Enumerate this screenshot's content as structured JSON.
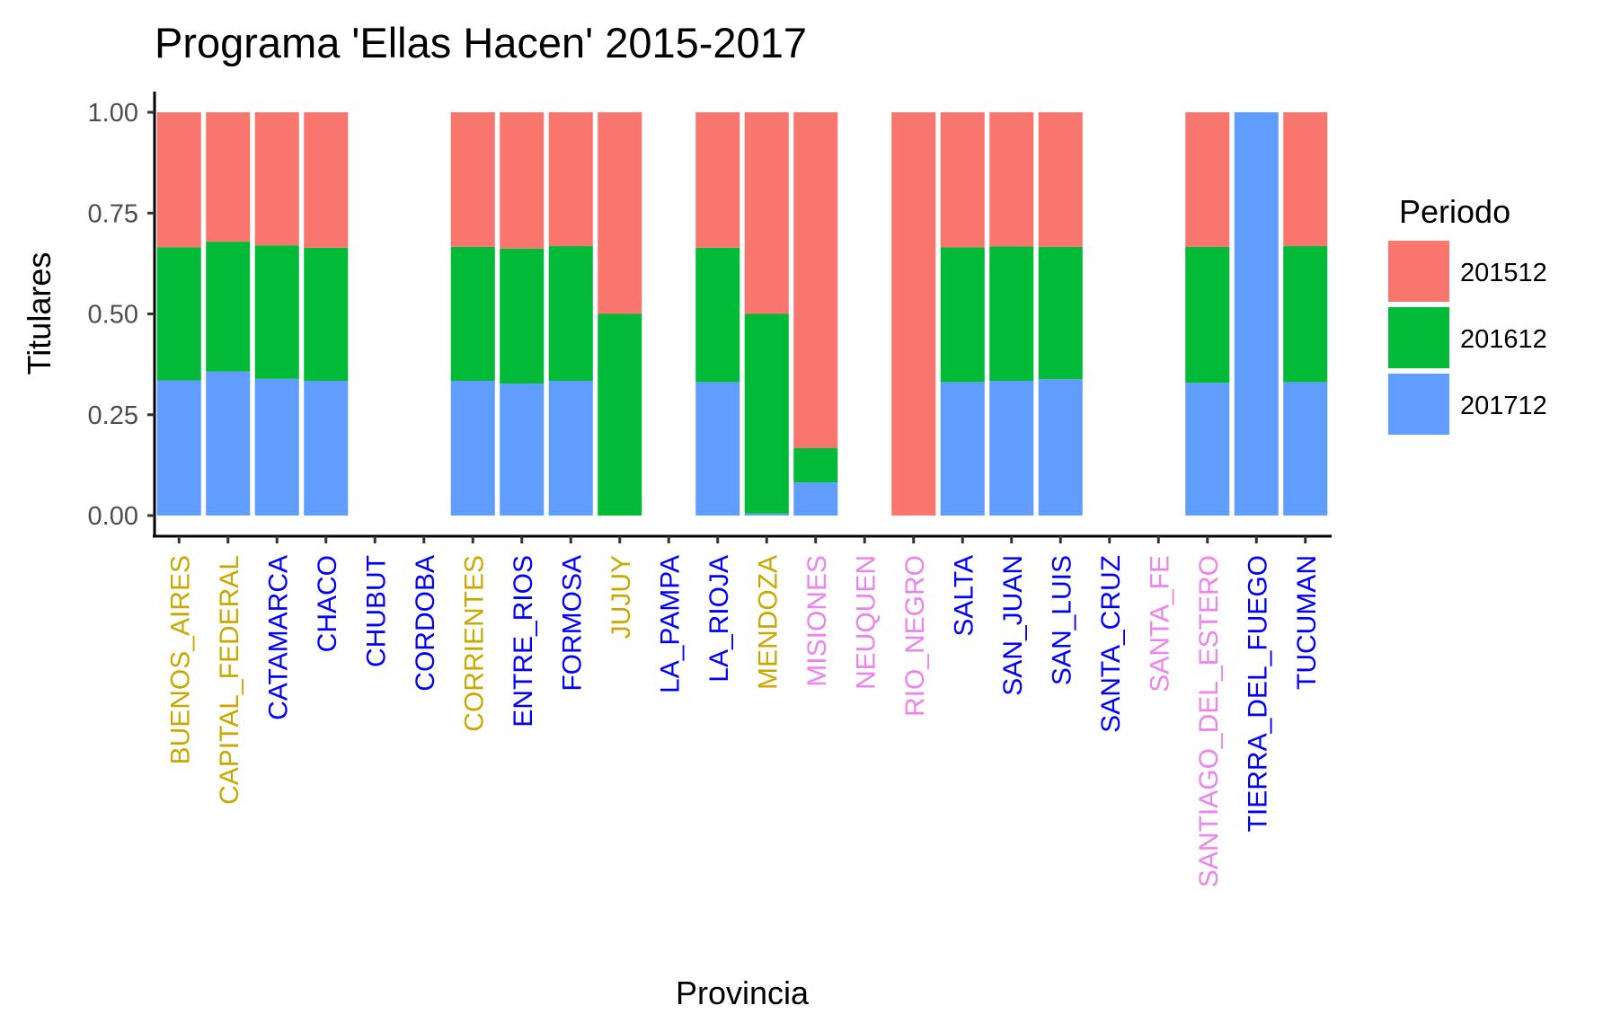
{
  "chart_data": {
    "type": "bar",
    "stacked": true,
    "title": "Programa 'Ellas Hacen' 2015-2017",
    "xlabel": "Provincia",
    "ylabel": "Titulares",
    "ylim": [
      0,
      1
    ],
    "yticks": [
      "0.00",
      "0.25",
      "0.50",
      "0.75",
      "1.00"
    ],
    "ytick_values": [
      0,
      0.25,
      0.5,
      0.75,
      1
    ],
    "grid": false,
    "legend_position": "right",
    "legend_title": "Periodo",
    "categories": [
      "BUENOS_AIRES",
      "CAPITAL_FEDERAL",
      "CATAMARCA",
      "CHACO",
      "CHUBUT",
      "CORDOBA",
      "CORRIENTES",
      "ENTRE_RIOS",
      "FORMOSA",
      "JUJUY",
      "LA_PAMPA",
      "LA_RIOJA",
      "MENDOZA",
      "MISIONES",
      "NEUQUEN",
      "RIO_NEGRO",
      "SALTA",
      "SAN_JUAN",
      "SAN_LUIS",
      "SANTA_CRUZ",
      "SANTA_FE",
      "SANTIAGO_DEL_ESTERO",
      "TIERRA_DEL_FUEGO",
      "TUCUMAN"
    ],
    "category_label_colors": [
      "#C9A800",
      "#C9A800",
      "#0000FF",
      "#0000FF",
      "#0000FF",
      "#0000FF",
      "#C9A800",
      "#0000FF",
      "#0000FF",
      "#C9A800",
      "#0000FF",
      "#0000FF",
      "#C9A800",
      "#EE82EE",
      "#EE82EE",
      "#EE82EE",
      "#0000FF",
      "#0000FF",
      "#0000FF",
      "#0000FF",
      "#EE82EE",
      "#EE82EE",
      "#0000FF",
      "#0000FF"
    ],
    "series": [
      {
        "name": "201712",
        "color": "#619CFF",
        "values": [
          0.335,
          0.357,
          0.339,
          0.334,
          0,
          0,
          0.334,
          0.327,
          0.334,
          0,
          0,
          0.331,
          0.005,
          0.082,
          0,
          0,
          0.331,
          0.334,
          0.338,
          0,
          0,
          0.329,
          1.0,
          0.331
        ]
      },
      {
        "name": "201612",
        "color": "#00BA38",
        "values": [
          0.33,
          0.322,
          0.331,
          0.33,
          0,
          0,
          0.332,
          0.335,
          0.334,
          0.5,
          0,
          0.333,
          0.495,
          0.085,
          0,
          0,
          0.334,
          0.333,
          0.328,
          0,
          0,
          0.337,
          0,
          0.337
        ]
      },
      {
        "name": "201512",
        "color": "#F8766D",
        "values": [
          0.335,
          0.321,
          0.33,
          0.336,
          0,
          0,
          0.334,
          0.338,
          0.332,
          0.5,
          0,
          0.336,
          0.5,
          0.833,
          0,
          1.0,
          0.335,
          0.333,
          0.334,
          0,
          0,
          0.334,
          0,
          0.332
        ]
      }
    ],
    "legend_order": [
      "201512",
      "201612",
      "201712"
    ]
  }
}
